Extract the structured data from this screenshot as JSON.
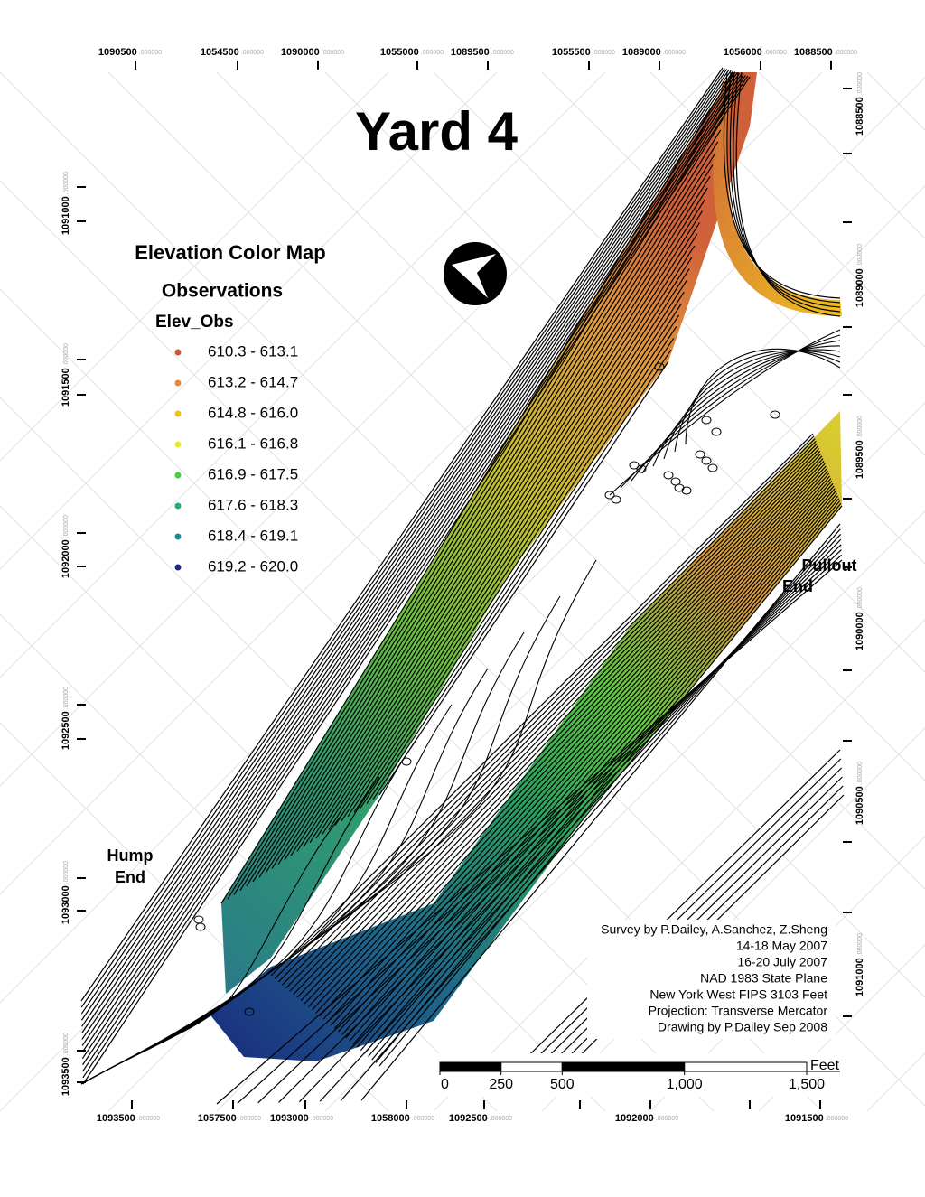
{
  "title": "Yard 4",
  "legend": {
    "title": "Elevation Color Map",
    "layer": "Observations",
    "field": "Elev_Obs",
    "classes": [
      {
        "label": "610.3 - 613.1",
        "color": "#c8553a"
      },
      {
        "label": "613.2 - 614.7",
        "color": "#e8873a"
      },
      {
        "label": "614.8 - 616.0",
        "color": "#f0c020"
      },
      {
        "label": "616.1 - 616.8",
        "color": "#e8e830"
      },
      {
        "label": "616.9 - 617.5",
        "color": "#40d040"
      },
      {
        "label": "617.6 - 618.3",
        "color": "#20b070"
      },
      {
        "label": "618.4 - 619.1",
        "color": "#1a8a90"
      },
      {
        "label": "619.2 - 620.0",
        "color": "#1a2a80"
      }
    ]
  },
  "coordinates": {
    "fraction": ".000000",
    "top": [
      "1090500",
      "1054500",
      "1090000",
      "1055000",
      "1089500",
      "1055500",
      "1089000",
      "1056000",
      "1088500"
    ],
    "bottom": [
      "1093500",
      "1057500",
      "1093000",
      "1058000",
      "1092500",
      "1092000",
      "1091500"
    ],
    "left": [
      "1091000",
      "1091500",
      "1092000",
      "1092500",
      "1093000",
      "1093500"
    ],
    "right": [
      "1088500",
      "1089000",
      "1089500",
      "1090000",
      "1090500",
      "1091000"
    ]
  },
  "labels": {
    "hump": [
      "Hump",
      "End"
    ],
    "pullout": [
      "Pullout",
      "End"
    ]
  },
  "credits": [
    "Survey by P.Dailey, A.Sanchez, Z.Sheng",
    "14-18 May 2007",
    "16-20 July 2007",
    "NAD 1983 State Plane",
    "New York West FIPS 3103 Feet",
    "Projection: Transverse Mercator",
    "Drawing by P.Dailey Sep 2008"
  ],
  "scale_bar": {
    "unit": "Feet",
    "range": [
      0,
      1500
    ],
    "ticks": [
      0,
      250,
      500,
      {
        "value": 1000,
        "label": "1,000"
      },
      {
        "value": 1500,
        "label": "1,500"
      }
    ]
  }
}
